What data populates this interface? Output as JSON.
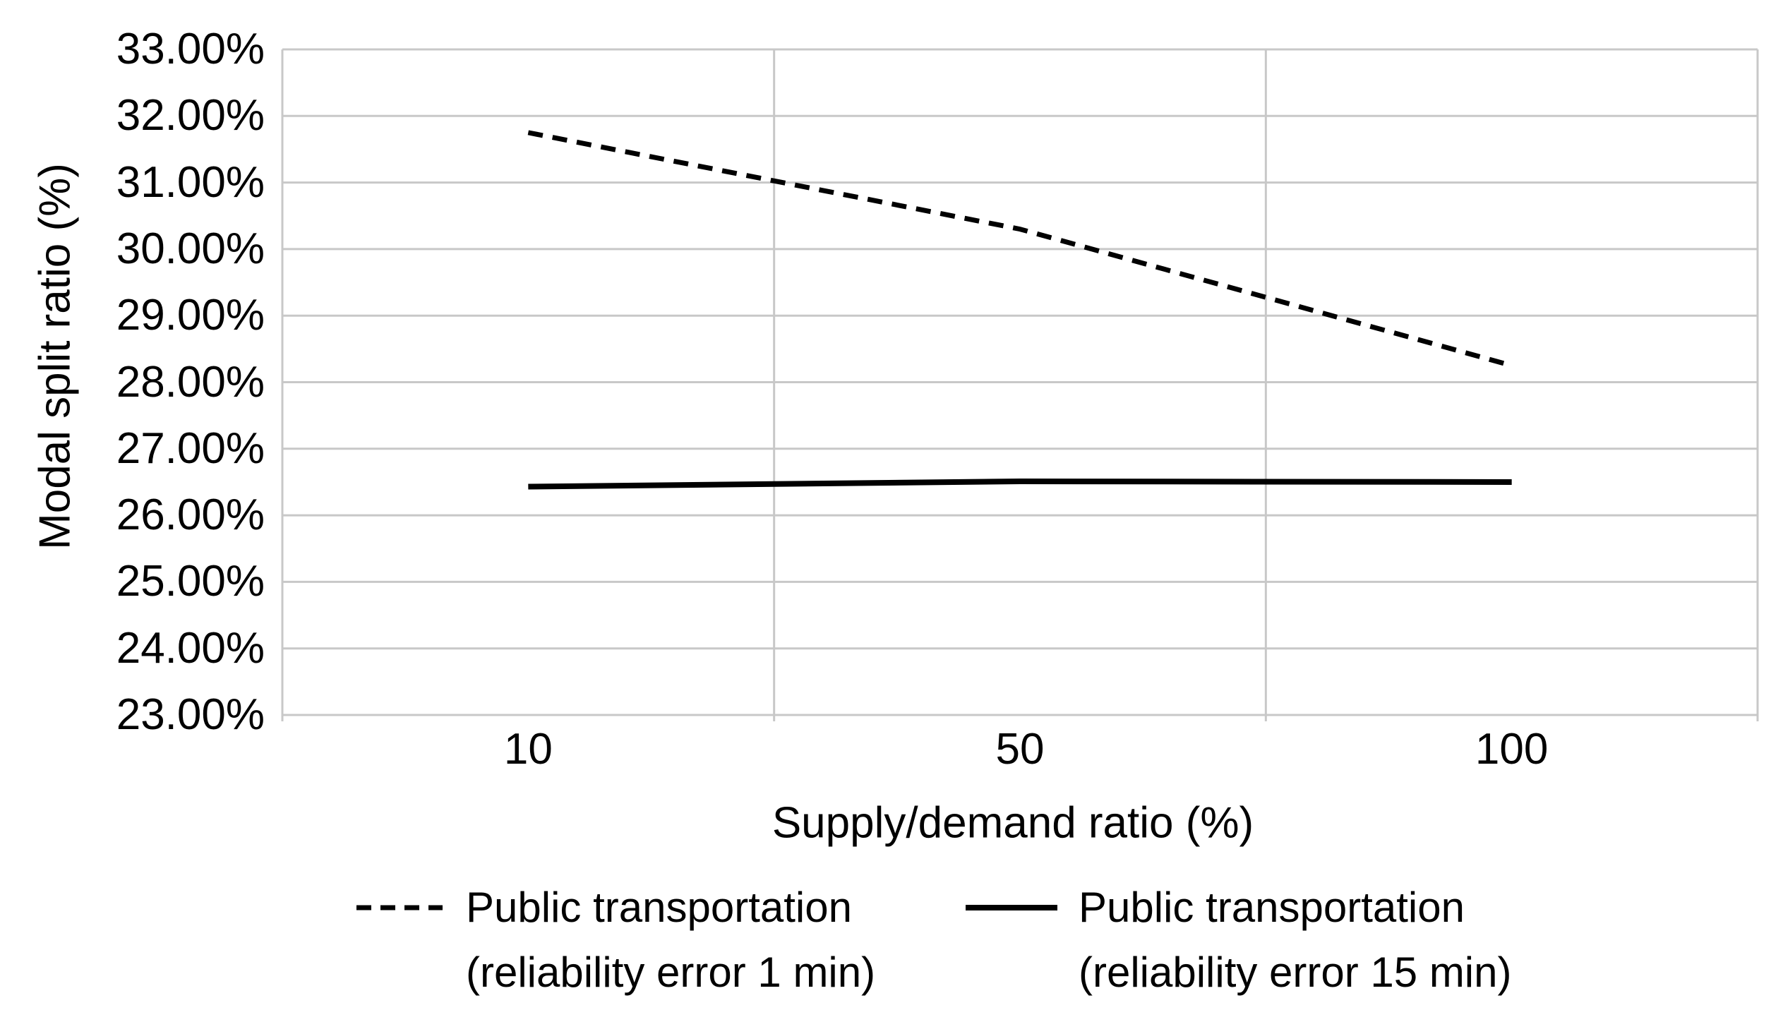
{
  "figure": {
    "background": "#ffffff"
  },
  "chart_data": {
    "type": "line",
    "title": "",
    "xlabel": "Supply/demand ratio (%)",
    "ylabel": "Modal split ratio (%)",
    "x_categories": [
      "10",
      "50",
      "100"
    ],
    "x_values": [
      10,
      50,
      100
    ],
    "ylim": [
      23,
      33
    ],
    "y_tick_step": 1,
    "y_tick_labels": [
      "23.00%",
      "24.00%",
      "25.00%",
      "26.00%",
      "27.00%",
      "28.00%",
      "29.00%",
      "30.00%",
      "31.00%",
      "32.00%",
      "33.00%"
    ],
    "grid": {
      "horizontal": true,
      "vertical_category_boundaries": true,
      "color": "#c8c8c8"
    },
    "legend_position": "bottom",
    "series": [
      {
        "name": "Public transportation (reliability error 1 min)",
        "label_line1": "Public transportation",
        "label_line2": "(reliability error 1 min)",
        "line_style": "dashed",
        "color": "#000000",
        "values": [
          31.75,
          30.3,
          28.25
        ]
      },
      {
        "name": "Public transportation (reliability error 15 min)",
        "label_line1": "Public transportation",
        "label_line2": "(reliability error 15 min)",
        "line_style": "solid",
        "color": "#000000",
        "values": [
          26.43,
          26.51,
          26.5
        ]
      }
    ]
  }
}
